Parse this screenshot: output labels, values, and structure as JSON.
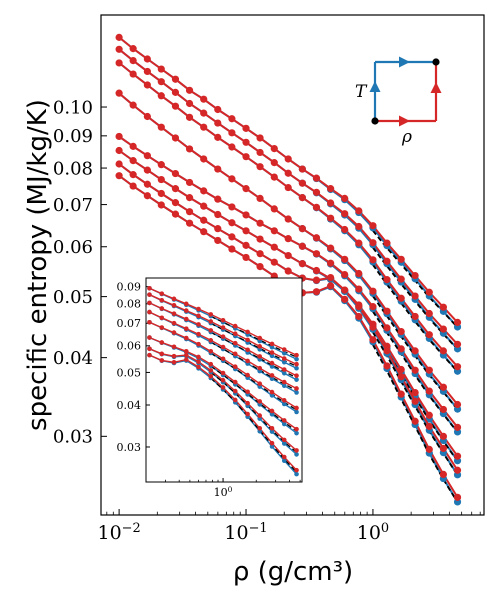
{
  "colors": {
    "red": "#d62728",
    "blue": "#1f77b4",
    "dashed": "#000000",
    "frame": "#000000"
  },
  "chart_data": [
    {
      "type": "line",
      "title": "",
      "xlabel": "ρ (g/cm³)",
      "ylabel": "specific entropy (MJ/kg/K)",
      "xscale": "log",
      "yscale": "log",
      "xlim": [
        0.0072,
        7.5
      ],
      "ylim": [
        0.0225,
        0.14
      ],
      "x_ticks": [
        {
          "value": 0.01,
          "label": "10⁻²"
        },
        {
          "value": 0.1,
          "label": "10⁻¹"
        },
        {
          "value": 1,
          "label": "10⁰"
        }
      ],
      "y_ticks": [
        {
          "value": 0.03,
          "label": "0.03"
        },
        {
          "value": 0.04,
          "label": "0.04"
        },
        {
          "value": 0.05,
          "label": "0.05"
        },
        {
          "value": 0.06,
          "label": "0.06"
        },
        {
          "value": 0.07,
          "label": "0.07"
        },
        {
          "value": 0.08,
          "label": "0.08"
        },
        {
          "value": 0.09,
          "label": "0.09"
        },
        {
          "value": 0.1,
          "label": "0.10"
        }
      ],
      "grid": false,
      "legend": "inset path diagram, top-right (axes T vertical, ρ horizontal; blue path up then right, red path right then up)",
      "diagram_labels": {
        "vertical": "T",
        "horizontal": "ρ"
      },
      "density_grid": [
        0.01,
        0.0129,
        0.0167,
        0.0215,
        0.0278,
        0.0359,
        0.0464,
        0.0599,
        0.0774,
        0.1,
        0.129,
        0.167,
        0.215,
        0.278,
        0.359,
        0.464,
        0.599,
        0.774,
        1.0,
        1.29,
        1.67,
        2.15,
        2.78,
        3.59,
        4.64
      ],
      "series": [
        {
          "values": [
            0.129,
            0.1238,
            0.1192,
            0.1149,
            0.1107,
            0.1063,
            0.1029,
            0.0991,
            0.0958,
            0.0925,
            0.0893,
            0.0859,
            0.0827,
            0.0797,
            0.0771,
            0.0742,
            0.0716,
            0.0684,
            0.0648,
            0.0608,
            0.0573,
            0.054,
            0.0508,
            0.0481,
            0.0455
          ]
        },
        {
          "values": [
            0.1235,
            0.1185,
            0.1139,
            0.1097,
            0.1055,
            0.1013,
            0.0978,
            0.0943,
            0.091,
            0.0879,
            0.0847,
            0.0816,
            0.0785,
            0.0757,
            0.0732,
            0.0704,
            0.0677,
            0.0646,
            0.0609,
            0.0569,
            0.0533,
            0.0501,
            0.047,
            0.0444,
            0.042
          ]
        },
        {
          "values": [
            0.1175,
            0.1128,
            0.1084,
            0.1042,
            0.1003,
            0.0963,
            0.0929,
            0.0895,
            0.0864,
            0.0834,
            0.0804,
            0.0774,
            0.0745,
            0.0718,
            0.0693,
            0.0666,
            0.0639,
            0.0608,
            0.0572,
            0.0532,
            0.0497,
            0.0465,
            0.0435,
            0.041,
            0.0387
          ]
        },
        {
          "values": [
            0.1052,
            0.1007,
            0.0966,
            0.0929,
            0.0893,
            0.0858,
            0.0827,
            0.0797,
            0.0769,
            0.0742,
            0.0716,
            0.0689,
            0.0664,
            0.0641,
            0.062,
            0.0597,
            0.0573,
            0.0544,
            0.051,
            0.0474,
            0.044,
            0.041,
            0.0382,
            0.0359,
            0.0337
          ]
        },
        {
          "values": [
            0.0898,
            0.0866,
            0.0837,
            0.081,
            0.0784,
            0.0759,
            0.0736,
            0.0714,
            0.0694,
            0.0674,
            0.0654,
            0.0636,
            0.0618,
            0.0601,
            0.0585,
            0.0565,
            0.0542,
            0.0514,
            0.0482,
            0.0446,
            0.0413,
            0.0382,
            0.0354,
            0.0331,
            0.031
          ]
        },
        {
          "values": [
            0.0853,
            0.0822,
            0.0794,
            0.0767,
            0.0742,
            0.0718,
            0.0696,
            0.0675,
            0.0655,
            0.0636,
            0.0617,
            0.0599,
            0.0581,
            0.0564,
            0.055,
            0.0534,
            0.0512,
            0.0485,
            0.0452,
            0.0417,
            0.0383,
            0.0352,
            0.0324,
            0.03,
            0.0279
          ]
        },
        {
          "values": [
            0.0812,
            0.0781,
            0.0754,
            0.0729,
            0.0705,
            0.0682,
            0.0661,
            0.0641,
            0.0622,
            0.0603,
            0.0585,
            0.0567,
            0.0549,
            0.0535,
            0.0531,
            0.0536,
            0.0512,
            0.0482,
            0.0447,
            0.041,
            0.0373,
            0.0341,
            0.0311,
            0.0287,
            0.0265
          ]
        },
        {
          "values": [
            0.0778,
            0.0749,
            0.0723,
            0.0699,
            0.0676,
            0.0654,
            0.0634,
            0.0614,
            0.0595,
            0.0577,
            0.0558,
            0.0539,
            0.0521,
            0.0507,
            0.0509,
            0.052,
            0.0495,
            0.0465,
            0.0427,
            0.0388,
            0.035,
            0.0317,
            0.0286,
            0.0261,
            0.024
          ]
        }
      ]
    },
    {
      "type": "line",
      "title": "",
      "xscale": "log",
      "yscale": "log",
      "xlim": [
        0.2,
        5.2
      ],
      "ylim": [
        0.0236,
        0.0955
      ],
      "x_ticks": [
        {
          "value": 1,
          "label": "10⁰"
        }
      ],
      "y_ticks": [
        {
          "value": 0.03,
          "label": "0.03"
        },
        {
          "value": 0.04,
          "label": "0.04"
        },
        {
          "value": 0.05,
          "label": "0.05"
        },
        {
          "value": 0.06,
          "label": "0.06"
        },
        {
          "value": 0.07,
          "label": "0.07"
        },
        {
          "value": 0.08,
          "label": "0.08"
        },
        {
          "value": 0.09,
          "label": "0.09"
        }
      ],
      "grid": false,
      "density_grid": [
        0.215,
        0.278,
        0.359,
        0.464,
        0.599,
        0.774,
        1.0,
        1.29,
        1.67,
        2.15,
        2.78,
        3.59,
        4.64
      ],
      "series": [
        {
          "values": [
            0.089,
            0.0858,
            0.0828,
            0.08,
            0.0772,
            0.0744,
            0.0715,
            0.0687,
            0.066,
            0.0633,
            0.0608,
            0.0585,
            0.0563
          ]
        },
        {
          "values": [
            0.0852,
            0.082,
            0.0792,
            0.0764,
            0.0737,
            0.0709,
            0.068,
            0.0652,
            0.0625,
            0.0598,
            0.0573,
            0.055,
            0.0529
          ]
        },
        {
          "values": [
            0.0805,
            0.0775,
            0.0748,
            0.0721,
            0.0695,
            0.0667,
            0.0639,
            0.0611,
            0.0584,
            0.0558,
            0.0533,
            0.051,
            0.0489
          ]
        },
        {
          "values": [
            0.0756,
            0.0727,
            0.0701,
            0.0675,
            0.065,
            0.0623,
            0.0595,
            0.0568,
            0.0541,
            0.0515,
            0.049,
            0.0468,
            0.0448
          ]
        },
        {
          "values": [
            0.0705,
            0.068,
            0.0657,
            0.0633,
            0.0607,
            0.0578,
            0.0549,
            0.052,
            0.0491,
            0.0463,
            0.0437,
            0.0413,
            0.0392
          ]
        },
        {
          "values": [
            0.0635,
            0.0614,
            0.0596,
            0.0578,
            0.0556,
            0.0529,
            0.0498,
            0.0468,
            0.0438,
            0.041,
            0.0384,
            0.036,
            0.0339
          ]
        },
        {
          "values": [
            0.0588,
            0.0568,
            0.0559,
            0.0563,
            0.0538,
            0.0507,
            0.0474,
            0.044,
            0.0405,
            0.0372,
            0.0341,
            0.0315,
            0.0293
          ]
        },
        {
          "values": [
            0.0563,
            0.0543,
            0.0536,
            0.0546,
            0.0519,
            0.0487,
            0.0451,
            0.0414,
            0.0376,
            0.0341,
            0.0308,
            0.028,
            0.0256
          ]
        }
      ]
    }
  ]
}
